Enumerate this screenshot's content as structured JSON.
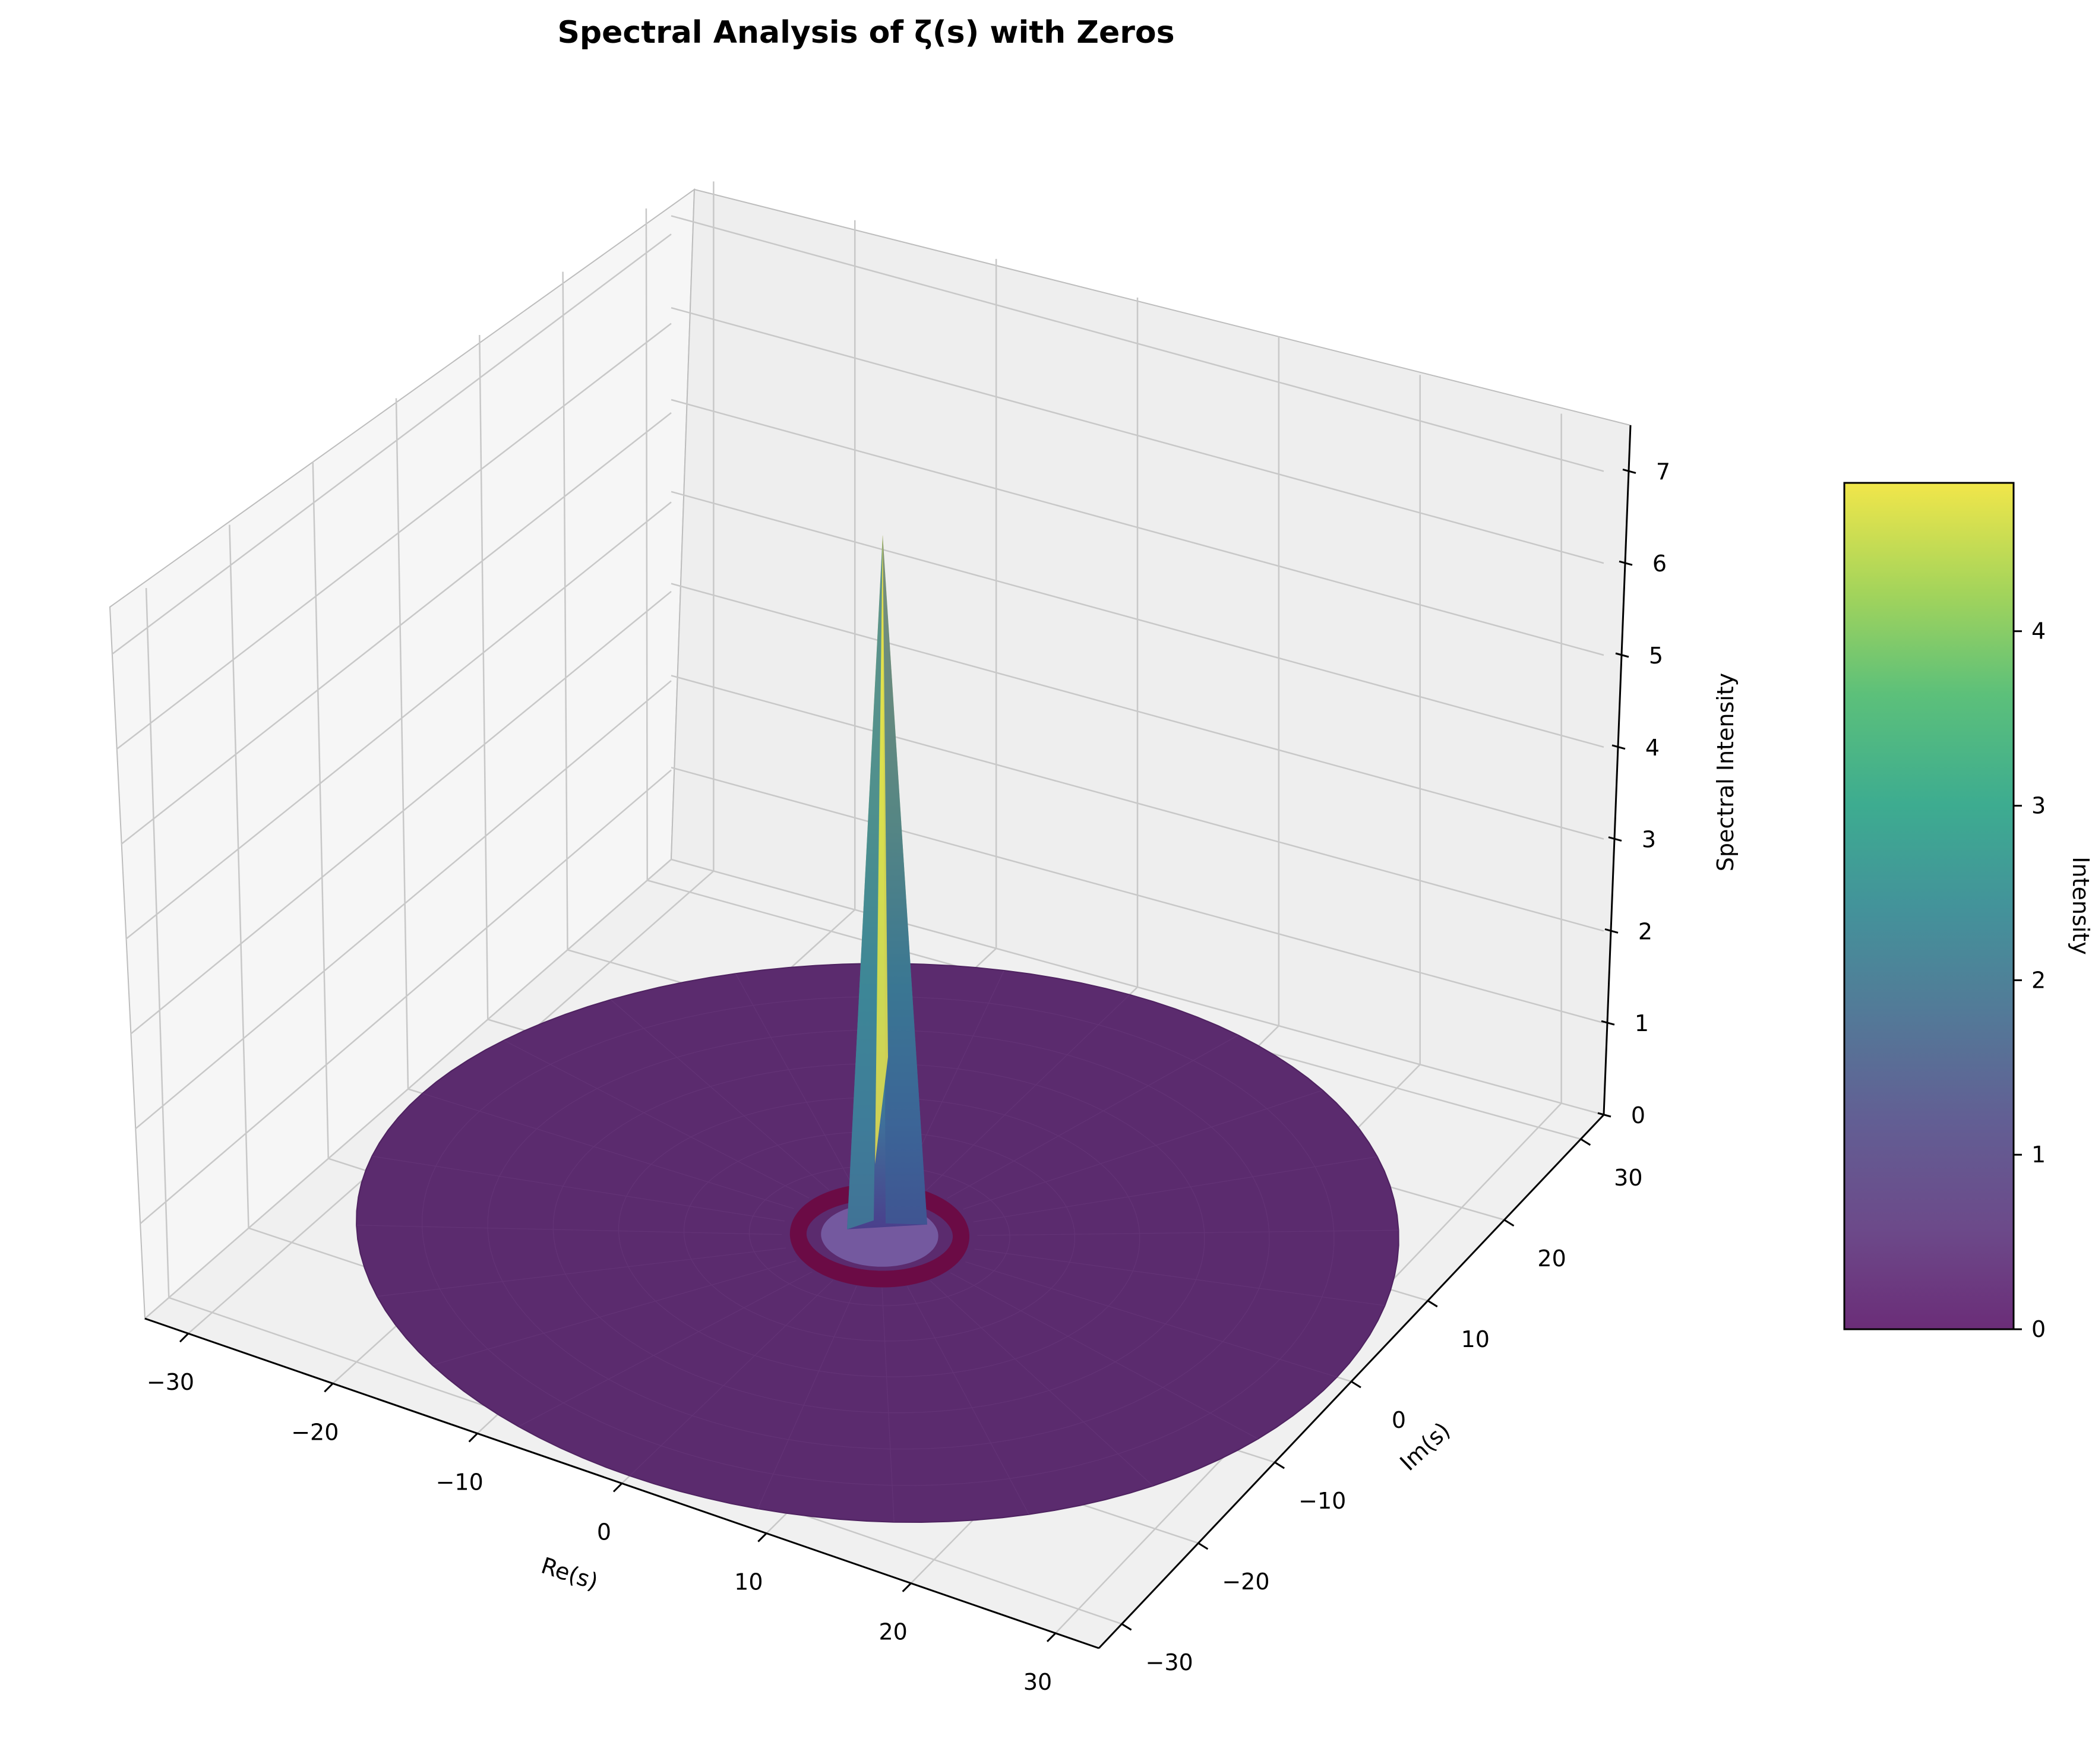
{
  "chart_data": {
    "type": "surface3d",
    "title": "Spectral Analysis of ζ(s) with Zeros",
    "xlabel": "Re(s)",
    "ylabel": "Im(s)",
    "zlabel": "Spectral Intensity",
    "x_ticks": [
      "−30",
      "−20",
      "−10",
      "0",
      "10",
      "20",
      "30"
    ],
    "y_ticks": [
      "−30",
      "−20",
      "−10",
      "0",
      "10",
      "20",
      "30"
    ],
    "z_ticks": [
      "0",
      "1",
      "2",
      "3",
      "4",
      "5",
      "6",
      "7"
    ],
    "xlim": [
      -33,
      33
    ],
    "ylim": [
      -33,
      33
    ],
    "zlim": [
      0,
      7.5
    ],
    "surface": {
      "shape": "radial disk",
      "radius": 32,
      "peak_location": [
        0,
        0
      ],
      "peak_value": 6.8,
      "baseline_value": 0,
      "zero_ring_radius": 5
    },
    "colormap": "viridis",
    "colorbar": {
      "label": "Intensity",
      "ticks": [
        "0",
        "1",
        "2",
        "3",
        "4"
      ],
      "range": [
        0,
        4.85
      ]
    },
    "grid": true,
    "colors": {
      "surface_base": "#5a2a6e",
      "zero_ring": "#6b0b45",
      "pane": "#f2f2f2",
      "grid": "#c8c8c8"
    }
  }
}
